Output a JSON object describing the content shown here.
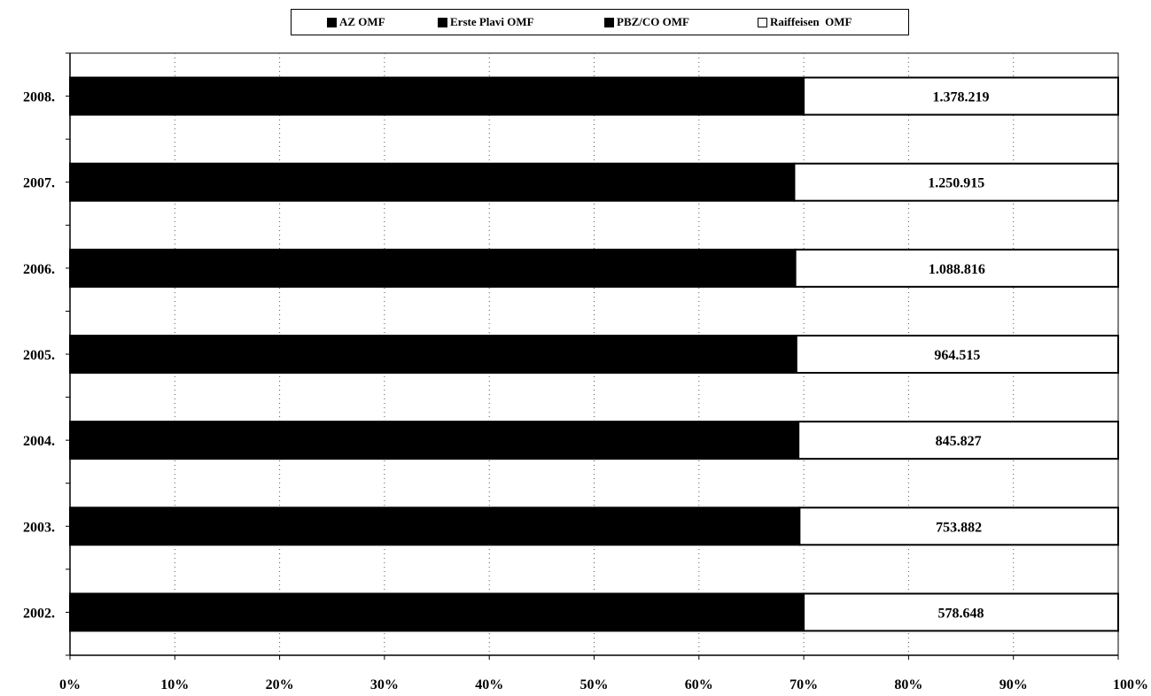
{
  "chart_data": {
    "type": "bar",
    "orientation": "horizontal",
    "stacked_percent": true,
    "categories": [
      "2002.",
      "2003.",
      "2004.",
      "2005.",
      "2006.",
      "2007.",
      "2008."
    ],
    "series": [
      {
        "name": "AZ OMF",
        "color": "#000000",
        "percent": [
          70,
          69.6,
          69.5,
          69.3,
          69.2,
          69.1,
          70
        ]
      },
      {
        "name": "Erste Plavi OMF",
        "color": "#000000",
        "percent": [
          0,
          0,
          0,
          0,
          0,
          0,
          0
        ]
      },
      {
        "name": "PBZ/CO OMF",
        "color": "#000000",
        "percent": [
          0,
          0,
          0,
          0,
          0,
          0,
          0
        ]
      },
      {
        "name": "Raiffeisen OMF",
        "color": "#ffffff",
        "percent": [
          30,
          30.4,
          30.5,
          30.7,
          30.8,
          30.9,
          30
        ]
      }
    ],
    "data_labels": [
      "578.648",
      "753.882",
      "845.827",
      "964.515",
      "1.088.816",
      "1.250.915",
      "1.378.219"
    ],
    "x_ticks": [
      "0%",
      "10%",
      "20%",
      "30%",
      "40%",
      "50%",
      "60%",
      "70%",
      "80%",
      "90%",
      "100%"
    ],
    "xlim": [
      0,
      100
    ],
    "grid": "vertical dotted",
    "legend_position": "top"
  },
  "legend": [
    {
      "label": "AZ OMF",
      "swatch": "filled"
    },
    {
      "label": "Erste Plavi OMF",
      "swatch": "filled"
    },
    {
      "label": "PBZ/CO OMF",
      "swatch": "filled"
    },
    {
      "label": "Raiffeisen  OMF",
      "swatch": "empty"
    }
  ]
}
